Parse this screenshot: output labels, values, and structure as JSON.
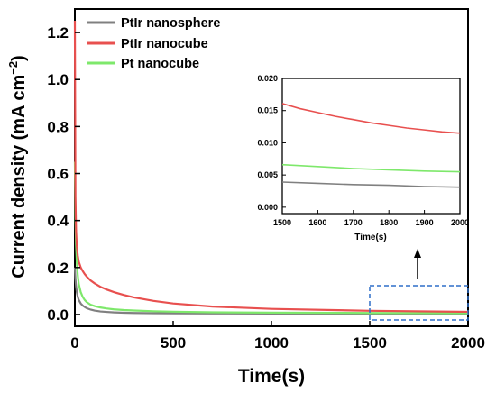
{
  "chart_data": [
    {
      "type": "line",
      "xlabel": "Time(s)",
      "ylabel_main": "Current density (mA cm",
      "ylabel_exp": "−2",
      "ylabel_close": ")",
      "xlim": [
        0,
        2000
      ],
      "ylim": [
        -0.05,
        1.3
      ],
      "xticks": [
        0,
        500,
        1000,
        1500,
        2000
      ],
      "xtick_labels": [
        "0",
        "500",
        "1000",
        "1500",
        "2000"
      ],
      "yticks": [
        0.0,
        0.2,
        0.4,
        0.6,
        0.8,
        1.0,
        1.2
      ],
      "ytick_labels": [
        "0.0",
        "0.2",
        "0.4",
        "0.6",
        "0.8",
        "1.0",
        "1.2"
      ],
      "legend_position": "top-left",
      "series": [
        {
          "name": "PtIr nanosphere",
          "color": "#808080",
          "x": [
            0,
            3,
            6,
            10,
            15,
            20,
            30,
            40,
            50,
            60,
            80,
            100,
            130,
            160,
            200,
            250,
            300,
            400,
            500,
            700,
            1000,
            1500,
            2000
          ],
          "y": [
            0.2,
            0.15,
            0.12,
            0.095,
            0.075,
            0.062,
            0.047,
            0.038,
            0.032,
            0.027,
            0.021,
            0.017,
            0.013,
            0.011,
            0.009,
            0.0075,
            0.0065,
            0.0055,
            0.005,
            0.0045,
            0.0042,
            0.0038,
            0.0032
          ]
        },
        {
          "name": "PtIr nanocube",
          "color": "#e8504f",
          "x": [
            0,
            3,
            6,
            10,
            15,
            20,
            30,
            40,
            50,
            60,
            80,
            100,
            130,
            160,
            200,
            250,
            300,
            400,
            500,
            700,
            1000,
            1500,
            2000
          ],
          "y": [
            1.25,
            0.5,
            0.36,
            0.29,
            0.25,
            0.225,
            0.2,
            0.185,
            0.172,
            0.162,
            0.145,
            0.133,
            0.118,
            0.107,
            0.095,
            0.083,
            0.073,
            0.058,
            0.047,
            0.034,
            0.024,
            0.016,
            0.0115
          ]
        },
        {
          "name": "Pt nanocube",
          "color": "#7ee86b",
          "x": [
            0,
            3,
            6,
            10,
            15,
            20,
            30,
            40,
            50,
            60,
            80,
            100,
            130,
            160,
            200,
            250,
            300,
            400,
            500,
            700,
            1000,
            1500,
            2000
          ],
          "y": [
            0.65,
            0.42,
            0.3,
            0.22,
            0.165,
            0.13,
            0.095,
            0.075,
            0.062,
            0.053,
            0.042,
            0.036,
            0.03,
            0.026,
            0.022,
            0.019,
            0.017,
            0.014,
            0.012,
            0.0095,
            0.008,
            0.0066,
            0.0055
          ]
        }
      ]
    },
    {
      "type": "line",
      "role": "inset",
      "xlabel": "Time(s)",
      "xlim": [
        1500,
        2000
      ],
      "ylim": [
        -0.001,
        0.02
      ],
      "xticks": [
        1500,
        1600,
        1700,
        1800,
        1900,
        2000
      ],
      "xtick_labels": [
        "1500",
        "1600",
        "1700",
        "1800",
        "1900",
        "2000"
      ],
      "yticks": [
        0.0,
        0.005,
        0.01,
        0.015,
        0.02
      ],
      "ytick_labels": [
        "0.000",
        "0.005",
        "0.010",
        "0.015",
        "0.020"
      ],
      "series": [
        {
          "name": "PtIr nanosphere",
          "color": "#808080",
          "x": [
            1500,
            1600,
            1700,
            1800,
            1900,
            2000
          ],
          "y": [
            0.0039,
            0.0037,
            0.0035,
            0.0034,
            0.0032,
            0.0031
          ]
        },
        {
          "name": "PtIr nanocube",
          "color": "#e8504f",
          "x": [
            1500,
            1550,
            1600,
            1650,
            1700,
            1750,
            1800,
            1850,
            1900,
            1950,
            2000
          ],
          "y": [
            0.0161,
            0.0153,
            0.0147,
            0.0141,
            0.0136,
            0.0131,
            0.0127,
            0.0123,
            0.012,
            0.0117,
            0.0115
          ]
        },
        {
          "name": "Pt nanocube",
          "color": "#7ee86b",
          "x": [
            1500,
            1600,
            1700,
            1800,
            1900,
            2000
          ],
          "y": [
            0.0066,
            0.0063,
            0.006,
            0.0058,
            0.0056,
            0.0055
          ]
        }
      ]
    }
  ],
  "highlight_box_color": "#2f6fc9"
}
